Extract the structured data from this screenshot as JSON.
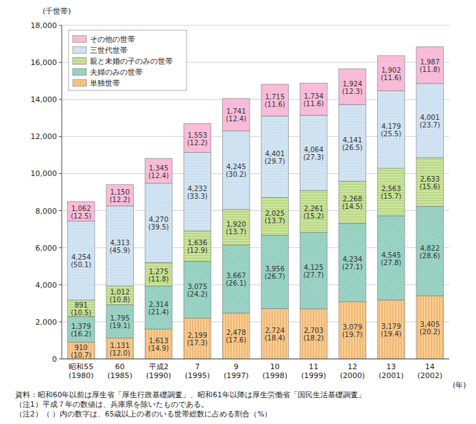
{
  "chart_data": {
    "type": "bar",
    "stacked": true,
    "data_labels": true,
    "grid": true,
    "legend": "upper left",
    "y_label": "(千世帯)",
    "x_label": "(年)",
    "categories": [
      "昭和55\n(1980)",
      "60\n(1985)",
      "平成2\n(1990)",
      "7\n(1995)",
      "9\n(1997)",
      "10\n(1998)",
      "11\n(1999)",
      "12\n(2000)",
      "13\n(2001)",
      "14\n(2002)"
    ],
    "ylim": [
      0,
      18000
    ],
    "yticks": [
      0,
      {
        "value": 2000,
        "label": "2,000"
      },
      {
        "value": 4000,
        "label": "4,000"
      },
      {
        "value": 6000,
        "label": "6,000"
      },
      {
        "value": 8000,
        "label": "8,000"
      },
      {
        "value": 10000,
        "label": "10,000"
      },
      {
        "value": 12000,
        "label": "12,000"
      },
      {
        "value": 14000,
        "label": "14,000"
      },
      {
        "value": 16000,
        "label": "16,000"
      },
      {
        "value": 18000,
        "label": "18,000"
      }
    ],
    "series": [
      {
        "name": "単独世帯",
        "color": "#f8cf96",
        "values": [
          910,
          1131,
          1613,
          2199,
          2478,
          2724,
          2703,
          3079,
          3179,
          3405
        ],
        "value_labels": [
          "910",
          "1,131",
          "1,613",
          "2,199",
          "2,478",
          "2,724",
          "2,703",
          "3,079",
          "3,179",
          "3,405"
        ],
        "shares": [
          10.7,
          12.0,
          14.9,
          17.3,
          17.6,
          18.4,
          18.2,
          19.7,
          19.4,
          20.2
        ],
        "share_labels": [
          "(10.7)",
          "(12.0)",
          "(14.9)",
          "(17.3)",
          "(17.6)",
          "(18.4)",
          "(18.2)",
          "(19.7)",
          "(19.4)",
          "(20.2)"
        ]
      },
      {
        "name": "夫婦のみの世帯",
        "color": "#a6d9cc",
        "values": [
          1379,
          1795,
          2314,
          3075,
          3667,
          3956,
          4125,
          4234,
          4545,
          4822
        ],
        "value_labels": [
          "1,379",
          "1,795",
          "2,314",
          "3,075",
          "3,667",
          "3,956",
          "4,125",
          "4,234",
          "4,545",
          "4,822"
        ],
        "shares": [
          16.2,
          19.1,
          21.4,
          24.2,
          26.1,
          26.7,
          27.7,
          27.1,
          27.8,
          28.6
        ],
        "share_labels": [
          "(16.2)",
          "(19.1)",
          "(21.4)",
          "(24.2)",
          "(26.1)",
          "(26.7)",
          "(27.7)",
          "(27.1)",
          "(27.8)",
          "(28.6)"
        ]
      },
      {
        "name": "親と未婚の子のみの世帯",
        "color": "#cfe6a0",
        "values": [
          891,
          1012,
          1275,
          1636,
          1920,
          2025,
          2261,
          2268,
          2563,
          2633
        ],
        "value_labels": [
          "891",
          "1,012",
          "1,275",
          "1,636",
          "1,920",
          "2,025",
          "2,261",
          "2,268",
          "2,563",
          "2,633"
        ],
        "shares": [
          10.5,
          10.8,
          11.8,
          12.9,
          13.7,
          13.7,
          15.2,
          14.5,
          15.7,
          15.6
        ],
        "share_labels": [
          "(10.5)",
          "(10.8)",
          "(11.8)",
          "(12.9)",
          "(13.7)",
          "(13.7)",
          "(15.2)",
          "(14.5)",
          "(15.7)",
          "(15.6)"
        ]
      },
      {
        "name": "三世代世帯",
        "color": "#d3e5f3",
        "values": [
          4254,
          4313,
          4270,
          4232,
          4245,
          4401,
          4064,
          4141,
          4179,
          4001
        ],
        "value_labels": [
          "4,254",
          "4,313",
          "4,270",
          "4,232",
          "4,245",
          "4,401",
          "4,064",
          "4,141",
          "4,179",
          "4,001"
        ],
        "shares": [
          50.1,
          45.9,
          39.5,
          33.3,
          30.2,
          29.7,
          27.3,
          26.5,
          25.5,
          23.7
        ],
        "share_labels": [
          "(50.1)",
          "(45.9)",
          "(39.5)",
          "(33.3)",
          "(30.2)",
          "(29.7)",
          "(27.3)",
          "(26.5)",
          "(25.5)",
          "(23.7)"
        ]
      },
      {
        "name": "その他の世帯",
        "color": "#f8bcd9",
        "values": [
          1062,
          1150,
          1345,
          1553,
          1741,
          1715,
          1734,
          1924,
          1902,
          1987
        ],
        "value_labels": [
          "1,062",
          "1,150",
          "1,345",
          "1,553",
          "1,741",
          "1,715",
          "1,734",
          "1,924",
          "1,902",
          "1,987"
        ],
        "shares": [
          12.5,
          12.2,
          12.4,
          12.2,
          12.4,
          11.6,
          11.6,
          12.3,
          11.6,
          11.8
        ],
        "share_labels": [
          "(12.5)",
          "(12.2)",
          "(12.4)",
          "(12.2)",
          "(12.4)",
          "(11.6)",
          "(11.6)",
          "(12.3)",
          "(11.6)",
          "(11.8)"
        ]
      }
    ],
    "notes": [
      "資料：昭和60年以前は厚生省「厚生行政基礎調査」、昭和61年以降は厚生労働省「国民生活基礎調査」",
      "（注1）平成７年の数値は、兵庫県を除いたものである。",
      "（注2）（ ）内の数字は、65歳以上の者のいる世帯総数に占める割合（%）"
    ]
  }
}
